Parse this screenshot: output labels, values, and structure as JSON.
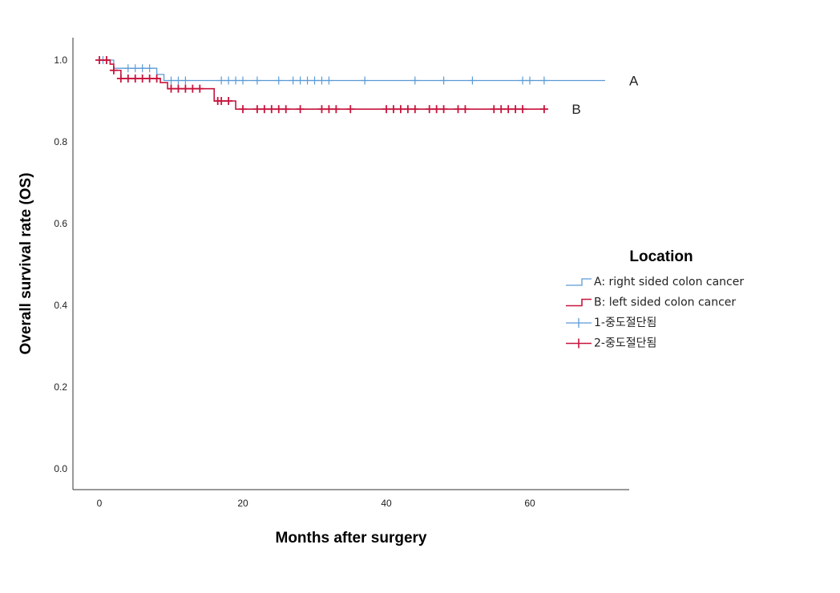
{
  "chart_data": {
    "type": "line",
    "subtype": "kaplan-meier",
    "title": "",
    "xlabel": "Months after surgery",
    "ylabel": "Overall survival rate (OS)",
    "xlim": [
      -4,
      74
    ],
    "ylim": [
      -0.05,
      1.06
    ],
    "xticks": [
      0,
      20,
      40,
      60
    ],
    "yticks": [
      0.0,
      0.2,
      0.4,
      0.6,
      0.8,
      1.0
    ],
    "xtick_labels": [
      "0",
      "20",
      "40",
      "60"
    ],
    "ytick_labels": [
      "0.0",
      "0.2",
      "0.4",
      "0.6",
      "0.8",
      "1.0"
    ],
    "grid": false,
    "legend": {
      "title": "Location",
      "placement": "right",
      "entries": [
        "A: right sided colon cancer",
        "B: left sided colon cancer",
        "1-중도절단됨",
        "2-중도절단됨"
      ]
    },
    "series": [
      {
        "name": "A: right sided colon cancer",
        "curve_label": "A",
        "color": "#5b9bd5",
        "steps": [
          [
            0,
            1.0
          ],
          [
            2,
            0.98
          ],
          [
            8,
            0.965
          ],
          [
            9,
            0.95
          ],
          [
            70.5,
            0.95
          ]
        ],
        "censored": [
          0.5,
          1,
          4,
          5,
          6,
          7,
          10,
          11,
          12,
          17,
          18,
          19,
          20,
          22,
          25,
          27,
          28,
          29,
          30,
          31,
          32,
          37,
          44,
          48,
          52,
          59,
          60,
          62
        ]
      },
      {
        "name": "B: left sided colon cancer",
        "curve_label": "B",
        "color": "#c8143c",
        "steps": [
          [
            0,
            1.0
          ],
          [
            1.5,
            0.99
          ],
          [
            2,
            0.975
          ],
          [
            3,
            0.955
          ],
          [
            8.5,
            0.945
          ],
          [
            9.5,
            0.93
          ],
          [
            16,
            0.9
          ],
          [
            19,
            0.88
          ],
          [
            62.5,
            0.88
          ]
        ],
        "censored": [
          0,
          1,
          2,
          3,
          4,
          5,
          6,
          7,
          8,
          10,
          11,
          12,
          13,
          14,
          16.5,
          17,
          18,
          20,
          22,
          23,
          24,
          25,
          26,
          28,
          31,
          32,
          33,
          35,
          40,
          41,
          42,
          43,
          44,
          46,
          47,
          48,
          50,
          51,
          55,
          56,
          57,
          58,
          59,
          62
        ]
      }
    ]
  }
}
